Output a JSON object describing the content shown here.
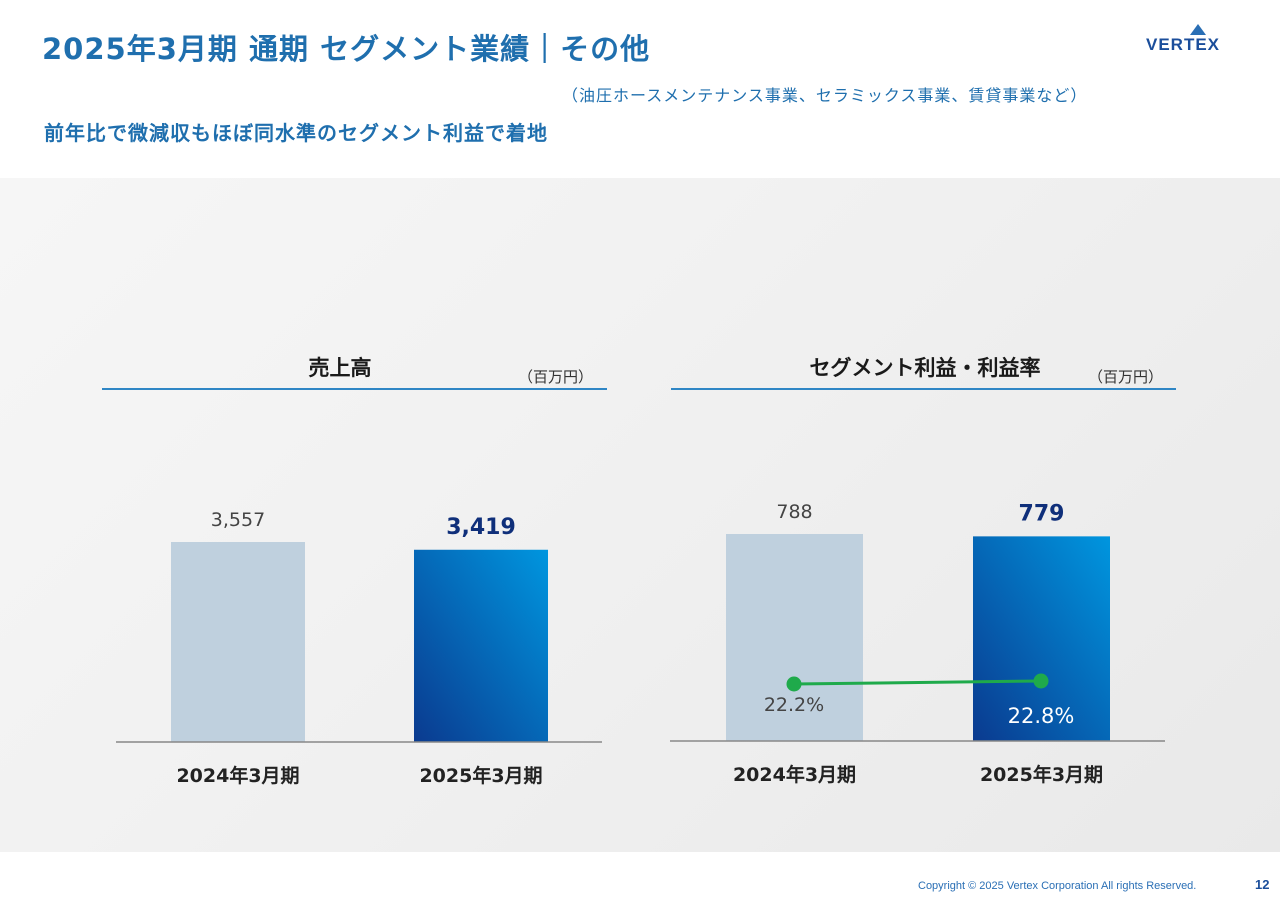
{
  "header": {
    "title": "2025年3月期 通期 セグメント業績｜その他",
    "sub_note": "（油圧ホースメンテナンス事業、セラミックス事業、賃貸事業など）",
    "headline": "前年比で微減収もほぼ同水準のセグメント利益で着地",
    "logo_text": "VERTEX"
  },
  "footer": {
    "copyright": "Copyright © 2025 Vertex Corporation All rights Reserved.",
    "page_number": "12"
  },
  "colors": {
    "prior_bar": "#bfd0de",
    "current_bar_light": "#0096df",
    "current_bar_dark": "#0a3a8f",
    "rate_line": "#1faa4b",
    "title": "#1f6fae"
  },
  "chart_data": [
    {
      "type": "bar",
      "title": "売上高",
      "unit": "（百万円）",
      "categories": [
        "2024年3月期",
        "2025年3月期"
      ],
      "values": [
        3557,
        3419
      ],
      "value_labels": [
        "3,557",
        "3,419"
      ]
    },
    {
      "type": "bar",
      "title": "セグメント利益・利益率",
      "unit": "（百万円）",
      "categories": [
        "2024年3月期",
        "2025年3月期"
      ],
      "values": [
        788,
        779
      ],
      "value_labels": [
        "788",
        "779"
      ],
      "line_series": {
        "values": [
          22.2,
          22.8
        ],
        "value_labels": [
          "22.2%",
          "22.8%"
        ]
      }
    }
  ]
}
